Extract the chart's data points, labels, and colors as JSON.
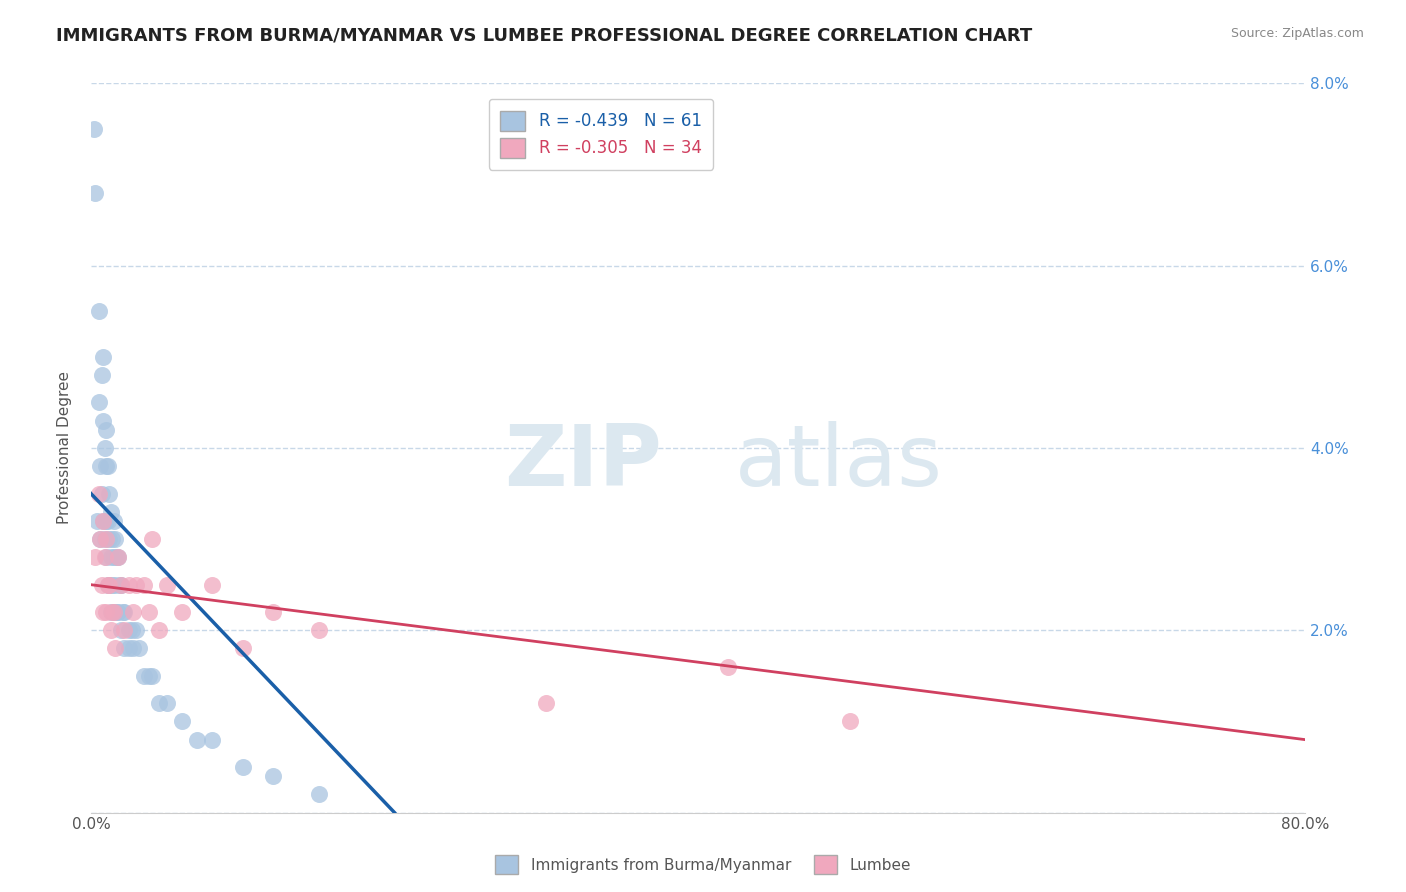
{
  "title": "IMMIGRANTS FROM BURMA/MYANMAR VS LUMBEE PROFESSIONAL DEGREE CORRELATION CHART",
  "source": "Source: ZipAtlas.com",
  "ylabel": "Professional Degree",
  "legend_label1": "Immigrants from Burma/Myanmar",
  "legend_label2": "Lumbee",
  "r1": -0.439,
  "n1": 61,
  "r2": -0.305,
  "n2": 34,
  "xlim": [
    0,
    0.8
  ],
  "ylim": [
    0,
    0.08
  ],
  "xticks": [
    0.0,
    0.1,
    0.2,
    0.3,
    0.4,
    0.5,
    0.6,
    0.7,
    0.8
  ],
  "yticks": [
    0.0,
    0.02,
    0.04,
    0.06,
    0.08
  ],
  "color_blue": "#a8c4e0",
  "color_pink": "#f0a8be",
  "line_color_blue": "#1a5fa8",
  "line_color_pink": "#d04060",
  "background_color": "#ffffff",
  "grid_color": "#c8d8e8",
  "watermark_color": "#dce8f0",
  "blue_scatter_x": [
    0.002,
    0.003,
    0.004,
    0.005,
    0.005,
    0.006,
    0.006,
    0.007,
    0.007,
    0.008,
    0.008,
    0.008,
    0.009,
    0.009,
    0.01,
    0.01,
    0.01,
    0.01,
    0.011,
    0.011,
    0.011,
    0.012,
    0.012,
    0.012,
    0.013,
    0.013,
    0.013,
    0.014,
    0.014,
    0.015,
    0.015,
    0.015,
    0.016,
    0.016,
    0.017,
    0.017,
    0.018,
    0.018,
    0.019,
    0.02,
    0.02,
    0.021,
    0.022,
    0.022,
    0.025,
    0.025,
    0.027,
    0.028,
    0.03,
    0.032,
    0.035,
    0.038,
    0.04,
    0.045,
    0.05,
    0.06,
    0.07,
    0.08,
    0.1,
    0.12,
    0.15
  ],
  "blue_scatter_y": [
    0.075,
    0.068,
    0.032,
    0.055,
    0.045,
    0.038,
    0.03,
    0.048,
    0.035,
    0.05,
    0.043,
    0.032,
    0.04,
    0.03,
    0.042,
    0.038,
    0.032,
    0.028,
    0.038,
    0.032,
    0.025,
    0.035,
    0.03,
    0.025,
    0.033,
    0.028,
    0.022,
    0.03,
    0.025,
    0.032,
    0.028,
    0.022,
    0.03,
    0.025,
    0.028,
    0.022,
    0.028,
    0.022,
    0.025,
    0.025,
    0.02,
    0.022,
    0.022,
    0.018,
    0.02,
    0.018,
    0.02,
    0.018,
    0.02,
    0.018,
    0.015,
    0.015,
    0.015,
    0.012,
    0.012,
    0.01,
    0.008,
    0.008,
    0.005,
    0.004,
    0.002
  ],
  "pink_scatter_x": [
    0.003,
    0.005,
    0.006,
    0.007,
    0.008,
    0.008,
    0.009,
    0.01,
    0.01,
    0.011,
    0.012,
    0.013,
    0.014,
    0.015,
    0.016,
    0.018,
    0.02,
    0.022,
    0.025,
    0.028,
    0.03,
    0.035,
    0.038,
    0.04,
    0.045,
    0.05,
    0.06,
    0.08,
    0.1,
    0.12,
    0.15,
    0.3,
    0.42,
    0.5
  ],
  "pink_scatter_y": [
    0.028,
    0.035,
    0.03,
    0.025,
    0.032,
    0.022,
    0.028,
    0.03,
    0.022,
    0.025,
    0.025,
    0.02,
    0.022,
    0.022,
    0.018,
    0.028,
    0.025,
    0.02,
    0.025,
    0.022,
    0.025,
    0.025,
    0.022,
    0.03,
    0.02,
    0.025,
    0.022,
    0.025,
    0.018,
    0.022,
    0.02,
    0.012,
    0.016,
    0.01
  ],
  "blue_line_x0": 0.0,
  "blue_line_y0": 0.035,
  "blue_line_x1": 0.2,
  "blue_line_y1": 0.0,
  "pink_line_x0": 0.0,
  "pink_line_y0": 0.025,
  "pink_line_x1": 0.8,
  "pink_line_y1": 0.008
}
